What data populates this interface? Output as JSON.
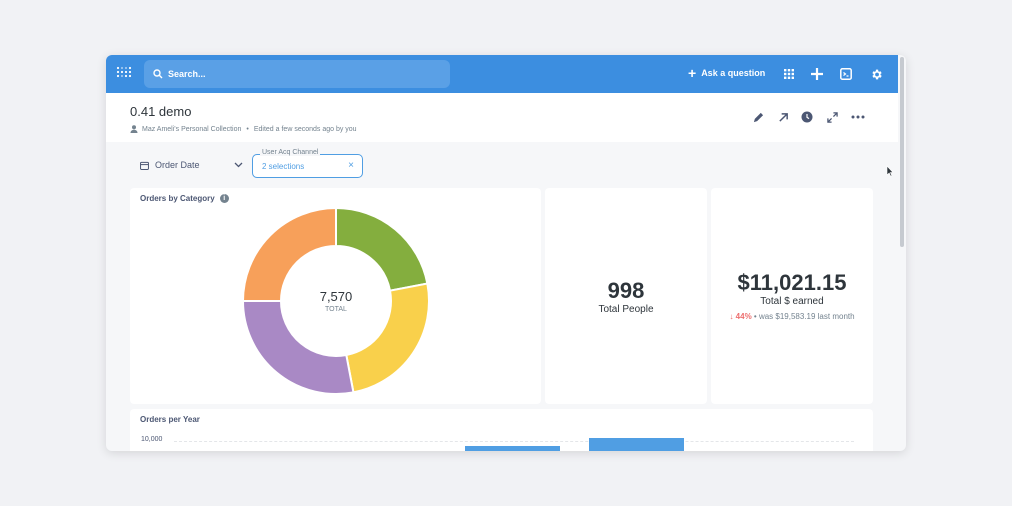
{
  "topbar": {
    "search_placeholder": "Search...",
    "ask_label": "Ask a question",
    "icons": [
      "grid-icon",
      "plus-icon",
      "terminal-icon",
      "gear-icon"
    ]
  },
  "dashboard": {
    "title": "0.41 demo",
    "collection": "Maz Ameli's Personal Collection",
    "edited": "Edited a few seconds ago by you",
    "actions": [
      "pencil-icon",
      "share-arrow-icon",
      "clock-icon",
      "fullscreen-icon",
      "more-icon"
    ]
  },
  "filters": {
    "date_label": "Order Date",
    "channel_legend": "User Acq Channel",
    "channel_value": "2 selections",
    "clear_glyph": "×"
  },
  "cards": {
    "category": {
      "title": "Orders by Category",
      "total_value": "7,570",
      "total_label": "TOTAL"
    },
    "people": {
      "value": "998",
      "label": "Total People"
    },
    "earned": {
      "value": "$11,021.15",
      "label": "Total $ earned",
      "change": "44%",
      "was": "• was $19,583.19 last month"
    },
    "per_year": {
      "title": "Orders per Year",
      "tick": "10,000"
    }
  },
  "colors": {
    "brand": "#3c8ee0",
    "green": "#84ae3e",
    "yellow": "#f9d04b",
    "purple": "#a989c5",
    "orange": "#f7a05a",
    "down": "#ed6e6e"
  },
  "chart_data": {
    "type": "pie",
    "donut": true,
    "title": "Orders by Category",
    "slices": [
      {
        "fraction": 0.22,
        "color": "#84ae3e"
      },
      {
        "fraction": 0.25,
        "color": "#f9d04b"
      },
      {
        "fraction": 0.28,
        "color": "#a989c5"
      },
      {
        "fraction": 0.25,
        "color": "#f7a05a"
      }
    ],
    "total": 7570
  }
}
